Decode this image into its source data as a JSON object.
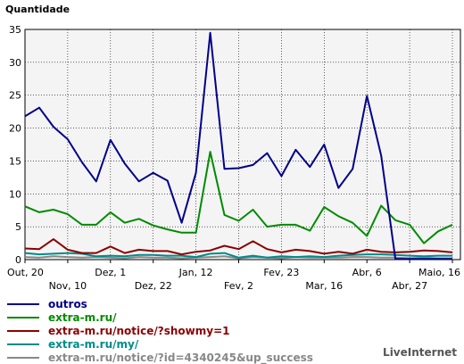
{
  "chart_data": {
    "type": "line",
    "ylabel": "Quantidade",
    "ylim": [
      0,
      35
    ],
    "yticks": [
      0,
      5,
      10,
      15,
      20,
      25,
      30,
      35
    ],
    "grid": true,
    "legend_position": "bottom-left",
    "x_tick_labels": [
      {
        "label": "Out, 20",
        "index": 0,
        "row": 0
      },
      {
        "label": "Nov, 10",
        "index": 3,
        "row": 1
      },
      {
        "label": "Dez, 1",
        "index": 6,
        "row": 0
      },
      {
        "label": "Dez, 22",
        "index": 9,
        "row": 1
      },
      {
        "label": "Jan, 12",
        "index": 12,
        "row": 0
      },
      {
        "label": "Fev, 2",
        "index": 15,
        "row": 1
      },
      {
        "label": "Fev, 23",
        "index": 18,
        "row": 0
      },
      {
        "label": "Mar, 16",
        "index": 21,
        "row": 1
      },
      {
        "label": "Abr, 6",
        "index": 24,
        "row": 0
      },
      {
        "label": "Abr, 27",
        "index": 27,
        "row": 1
      },
      {
        "label": "Maio, 16",
        "index": 30,
        "row": 0
      }
    ],
    "series": [
      {
        "name": "outros",
        "color": "#00008b",
        "values": [
          21.8,
          23.1,
          20.2,
          18.3,
          14.8,
          11.9,
          18.2,
          14.6,
          11.9,
          13.2,
          12.0,
          5.6,
          13.2,
          34.5,
          13.8,
          13.9,
          14.4,
          16.2,
          12.7,
          16.7,
          14.1,
          17.5,
          10.9,
          13.8,
          24.9,
          15.8,
          0.1,
          0.1,
          0.1,
          0.1,
          0.1
        ]
      },
      {
        "name": "extra-m.ru/",
        "color": "#008b00",
        "values": [
          8.1,
          7.2,
          7.6,
          6.9,
          5.3,
          5.3,
          7.2,
          5.6,
          6.2,
          5.2,
          4.6,
          4.1,
          4.1,
          16.4,
          6.8,
          5.9,
          7.6,
          5.0,
          5.3,
          5.3,
          4.4,
          8.0,
          6.6,
          5.6,
          3.6,
          8.2,
          6.0,
          5.3,
          2.5,
          4.3,
          5.3
        ]
      },
      {
        "name": "extra-m.ru/notice/?showmy=1",
        "color": "#8b0000",
        "values": [
          1.7,
          1.6,
          3.1,
          1.5,
          1.0,
          1.0,
          2.0,
          1.0,
          1.5,
          1.3,
          1.3,
          0.8,
          1.2,
          1.4,
          2.1,
          1.6,
          2.8,
          1.6,
          1.1,
          1.5,
          1.3,
          0.9,
          1.2,
          0.9,
          1.5,
          1.2,
          1.1,
          1.2,
          1.4,
          1.3,
          1.1
        ]
      },
      {
        "name": "extra-m.ru/my/",
        "color": "#008b8b",
        "values": [
          1.0,
          0.8,
          0.9,
          1.0,
          0.9,
          0.5,
          0.6,
          0.5,
          0.7,
          0.7,
          0.6,
          0.6,
          0.4,
          0.9,
          1.0,
          0.3,
          0.6,
          0.3,
          0.5,
          0.4,
          0.5,
          0.4,
          0.6,
          0.7,
          0.8,
          0.8,
          0.7,
          0.6,
          0.5,
          0.6,
          0.6
        ]
      },
      {
        "name": "extra-m.ru/notice/?id=4340245&up_success",
        "color": "#888888",
        "values": [
          0.4,
          0.3,
          0.5,
          0.4,
          0.3,
          0.4,
          0.3,
          0.2,
          0.4,
          0.3,
          0.3,
          0.2,
          0.3,
          0.4,
          0.5,
          0.2,
          0.4,
          0.3,
          0.2,
          0.4,
          0.3,
          0.3,
          0.3,
          0.4,
          0.4,
          0.3,
          0.3,
          0.2,
          0.3,
          0.2,
          0.2
        ]
      }
    ]
  },
  "branding": "LiveInternet"
}
